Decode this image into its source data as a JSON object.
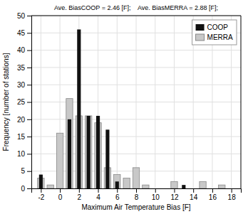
{
  "chart_data": {
    "type": "bar",
    "title": "Ave. BiasCOOP = 2.46 [F];    Ave. BiasMERRA = 2.88 [F];",
    "x_label": "Maximum Air Temperature Bias [F]",
    "y_label": "Frequency [number of stations]",
    "x": [
      -2,
      -1,
      0,
      1,
      2,
      3,
      4,
      5,
      6,
      7,
      8,
      9,
      10,
      11,
      12,
      13,
      14,
      15,
      16,
      17
    ],
    "series": [
      {
        "name": "COOP",
        "color": "#111111",
        "values": [
          4,
          0,
          0,
          20,
          46,
          21,
          21,
          17,
          2,
          0,
          0,
          0,
          0,
          0,
          0,
          1,
          0,
          0,
          0,
          0
        ]
      },
      {
        "name": "MERRA",
        "color": "#c8c8c8",
        "values": [
          3,
          1,
          16,
          26,
          21,
          21,
          19,
          6,
          4,
          3,
          6,
          1,
          0,
          0,
          2,
          0,
          0,
          2,
          0,
          1
        ]
      }
    ],
    "xlim": [
      -3,
      19
    ],
    "ylim": [
      0,
      50
    ],
    "xticks": [
      -2,
      0,
      2,
      4,
      6,
      8,
      10,
      12,
      14,
      16,
      18
    ],
    "yticks": [
      0,
      5,
      10,
      15,
      20,
      25,
      30,
      35,
      40,
      45,
      50
    ],
    "grid": true,
    "legend": "upper right"
  }
}
